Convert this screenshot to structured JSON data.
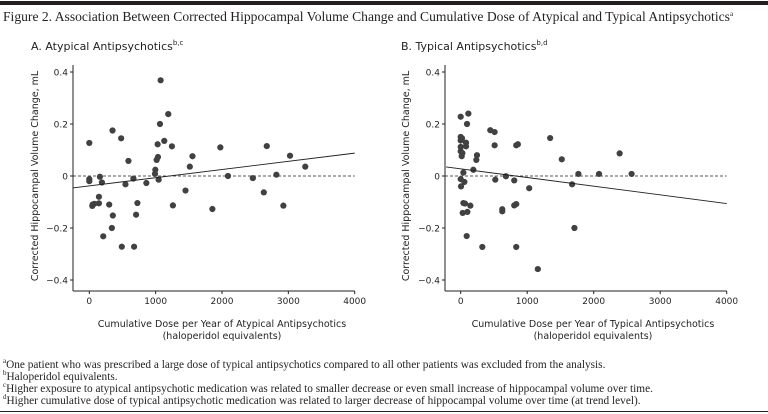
{
  "figure": {
    "title": "Figure 2. Association Between Corrected Hippocampal Volume Change and Cumulative Dose of Atypical and Typical Antipsychotics",
    "title_sup": "a",
    "footnotes": [
      {
        "mark": "a",
        "text": "One patient who was prescribed a large dose of typical antipsychotics compared to all other patients was excluded from the analysis."
      },
      {
        "mark": "b",
        "text": "Haloperidol equivalents."
      },
      {
        "mark": "c",
        "text": "Higher exposure to atypical antipsychotic medication was related to smaller decrease or even small increase of hippocampal volume over time."
      },
      {
        "mark": "d",
        "text": "Higher cumulative dose of typical antipsychotic medication was related to larger decrease of hippocampal volume over time (at trend level)."
      }
    ]
  },
  "chart_data": [
    {
      "type": "scatter",
      "title": "A. Atypical Antipsychotics",
      "title_sup": "b,c",
      "xlabel": "Cumulative Dose per Year of Atypical Antipsychotics",
      "xlabel2": "(haloperidol equivalents)",
      "ylabel": "Corrected Hippocampal Volume Change, mL",
      "xlim": [
        -250,
        4000
      ],
      "ylim": [
        -0.45,
        0.45
      ],
      "xticks": [
        "0",
        "1000",
        "2000",
        "3000",
        "4000"
      ],
      "yticks": [
        "0.4",
        "0.2",
        "0",
        "−0.2",
        "−0.4"
      ],
      "xtick_values": [
        0,
        1000,
        2000,
        3000,
        4000
      ],
      "ytick_values": [
        0.4,
        0.2,
        0,
        -0.2,
        -0.4
      ],
      "reference_line_y": 0,
      "regression_line": {
        "x": [
          -250,
          4000
        ],
        "y": [
          -0.046,
          0.088
        ]
      },
      "marker_color": "#414042",
      "points": [
        [
          0,
          0.127
        ],
        [
          0,
          -0.012
        ],
        [
          0,
          -0.02
        ],
        [
          160,
          -0.003
        ],
        [
          190,
          -0.025
        ],
        [
          145,
          -0.08
        ],
        [
          145,
          -0.105
        ],
        [
          50,
          -0.11
        ],
        [
          75,
          -0.107
        ],
        [
          45,
          -0.115
        ],
        [
          210,
          -0.232
        ],
        [
          300,
          -0.11
        ],
        [
          350,
          0.175
        ],
        [
          355,
          -0.152
        ],
        [
          340,
          -0.2
        ],
        [
          480,
          0.145
        ],
        [
          490,
          -0.272
        ],
        [
          545,
          -0.032
        ],
        [
          590,
          0.058
        ],
        [
          665,
          -0.01
        ],
        [
          675,
          -0.272
        ],
        [
          705,
          -0.149
        ],
        [
          725,
          -0.104
        ],
        [
          860,
          -0.027
        ],
        [
          990,
          0.008
        ],
        [
          995,
          0.024
        ],
        [
          1015,
          0.062
        ],
        [
          1035,
          0.073
        ],
        [
          1030,
          0.122
        ],
        [
          1045,
          -0.014
        ],
        [
          1065,
          0.2
        ],
        [
          1075,
          0.368
        ],
        [
          1130,
          0.135
        ],
        [
          1190,
          0.238
        ],
        [
          1245,
          0.114
        ],
        [
          1260,
          -0.113
        ],
        [
          1450,
          -0.056
        ],
        [
          1515,
          0.036
        ],
        [
          1555,
          0.076
        ],
        [
          1855,
          -0.127
        ],
        [
          1975,
          0.11
        ],
        [
          2090,
          0
        ],
        [
          2465,
          -0.008
        ],
        [
          2630,
          -0.063
        ],
        [
          2675,
          0.115
        ],
        [
          2820,
          0.005
        ],
        [
          2925,
          -0.114
        ],
        [
          3025,
          0.078
        ],
        [
          3255,
          0.036
        ]
      ]
    },
    {
      "type": "scatter",
      "title": "B. Typical Antipsychotics",
      "title_sup": "b,d",
      "xlabel": "Cumulative Dose per Year of Typical Antipsychotics",
      "xlabel2": "(haloperidol equivalents)",
      "ylabel": "Corrected Hippocampal Volume Change, mL",
      "xlim": [
        -250,
        4000
      ],
      "ylim": [
        -0.45,
        0.45
      ],
      "xticks": [
        "0",
        "1000",
        "2000",
        "3000",
        "4000"
      ],
      "yticks": [
        "0.4",
        "0.2",
        "0",
        "−0.2",
        "−0.4"
      ],
      "xtick_values": [
        0,
        1000,
        2000,
        3000,
        4000
      ],
      "ytick_values": [
        0.4,
        0.2,
        0,
        -0.2,
        -0.4
      ],
      "reference_line_y": 0,
      "regression_line": {
        "x": [
          -220,
          4000
        ],
        "y": [
          0.035,
          -0.106
        ]
      },
      "marker_color": "#414042",
      "points": [
        [
          0,
          0.228
        ],
        [
          115,
          0.24
        ],
        [
          95,
          0.2
        ],
        [
          0,
          0.15
        ],
        [
          20,
          0.145
        ],
        [
          0,
          0.137
        ],
        [
          0,
          0.112
        ],
        [
          80,
          0.128
        ],
        [
          80,
          0.114
        ],
        [
          0,
          0.095
        ],
        [
          25,
          0.088
        ],
        [
          15,
          0.076
        ],
        [
          245,
          0.08
        ],
        [
          235,
          0.062
        ],
        [
          190,
          0.024
        ],
        [
          40,
          0.013
        ],
        [
          0,
          -0.012
        ],
        [
          55,
          -0.023
        ],
        [
          5,
          -0.04
        ],
        [
          40,
          -0.104
        ],
        [
          65,
          -0.106
        ],
        [
          30,
          -0.142
        ],
        [
          100,
          -0.138
        ],
        [
          145,
          -0.114
        ],
        [
          90,
          -0.231
        ],
        [
          325,
          -0.273
        ],
        [
          445,
          0.176
        ],
        [
          510,
          0.169
        ],
        [
          510,
          0.118
        ],
        [
          520,
          -0.014
        ],
        [
          625,
          -0.128
        ],
        [
          625,
          -0.136
        ],
        [
          680,
          -0.001
        ],
        [
          805,
          -0.017
        ],
        [
          805,
          -0.113
        ],
        [
          835,
          -0.108
        ],
        [
          835,
          0.118
        ],
        [
          860,
          0.122
        ],
        [
          835,
          -0.273
        ],
        [
          1030,
          -0.047
        ],
        [
          1160,
          -0.358
        ],
        [
          1345,
          0.146
        ],
        [
          1520,
          0.064
        ],
        [
          1675,
          -0.032
        ],
        [
          1710,
          -0.2
        ],
        [
          1770,
          0.008
        ],
        [
          2080,
          0.008
        ],
        [
          2390,
          0.087
        ],
        [
          2570,
          0.008
        ]
      ]
    }
  ]
}
